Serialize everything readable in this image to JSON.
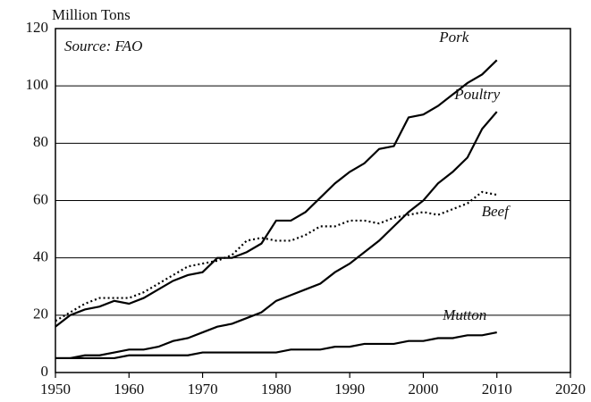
{
  "chart_data": {
    "type": "line",
    "y_label": "Million Tons",
    "annotation": "Source: FAO",
    "x": [
      1950,
      1952,
      1954,
      1956,
      1958,
      1960,
      1962,
      1964,
      1966,
      1968,
      1970,
      1972,
      1974,
      1976,
      1978,
      1980,
      1982,
      1984,
      1986,
      1988,
      1990,
      1992,
      1994,
      1996,
      1998,
      2000,
      2002,
      2004,
      2006,
      2008,
      2010
    ],
    "series": [
      {
        "name": "Pork",
        "color": "#000000",
        "dash": "solid",
        "values": [
          16,
          20,
          22,
          23,
          25,
          24,
          26,
          29,
          32,
          34,
          35,
          40,
          40,
          42,
          45,
          53,
          53,
          56,
          61,
          66,
          70,
          73,
          78,
          79,
          89,
          90,
          93,
          97,
          101,
          104,
          109
        ]
      },
      {
        "name": "Poultry",
        "color": "#000000",
        "dash": "solid",
        "values": [
          5,
          5,
          6,
          6,
          7,
          8,
          8,
          9,
          11,
          12,
          14,
          16,
          17,
          19,
          21,
          25,
          27,
          29,
          31,
          35,
          38,
          42,
          46,
          51,
          56,
          60,
          66,
          70,
          75,
          85,
          91
        ]
      },
      {
        "name": "Beef",
        "color": "#000000",
        "dash": "dotted",
        "values": [
          18,
          21,
          24,
          26,
          26,
          26,
          28,
          31,
          34,
          37,
          38,
          39,
          41,
          46,
          47,
          46,
          46,
          48,
          51,
          51,
          53,
          53,
          52,
          54,
          55,
          56,
          55,
          57,
          59,
          63,
          62
        ]
      },
      {
        "name": "Mutton",
        "color": "#000000",
        "dash": "solid",
        "values": [
          5,
          5,
          5,
          5,
          5,
          6,
          6,
          6,
          6,
          6,
          7,
          7,
          7,
          7,
          7,
          7,
          8,
          8,
          8,
          9,
          9,
          10,
          10,
          10,
          11,
          11,
          12,
          12,
          13,
          13,
          14
        ]
      }
    ],
    "xlim": [
      1950,
      2020
    ],
    "xticks": [
      1950,
      1960,
      1970,
      1980,
      1990,
      2000,
      2010,
      2020
    ],
    "ylim": [
      0,
      120
    ],
    "yticks": [
      0,
      20,
      40,
      60,
      80,
      100,
      120
    ],
    "grid": true
  }
}
